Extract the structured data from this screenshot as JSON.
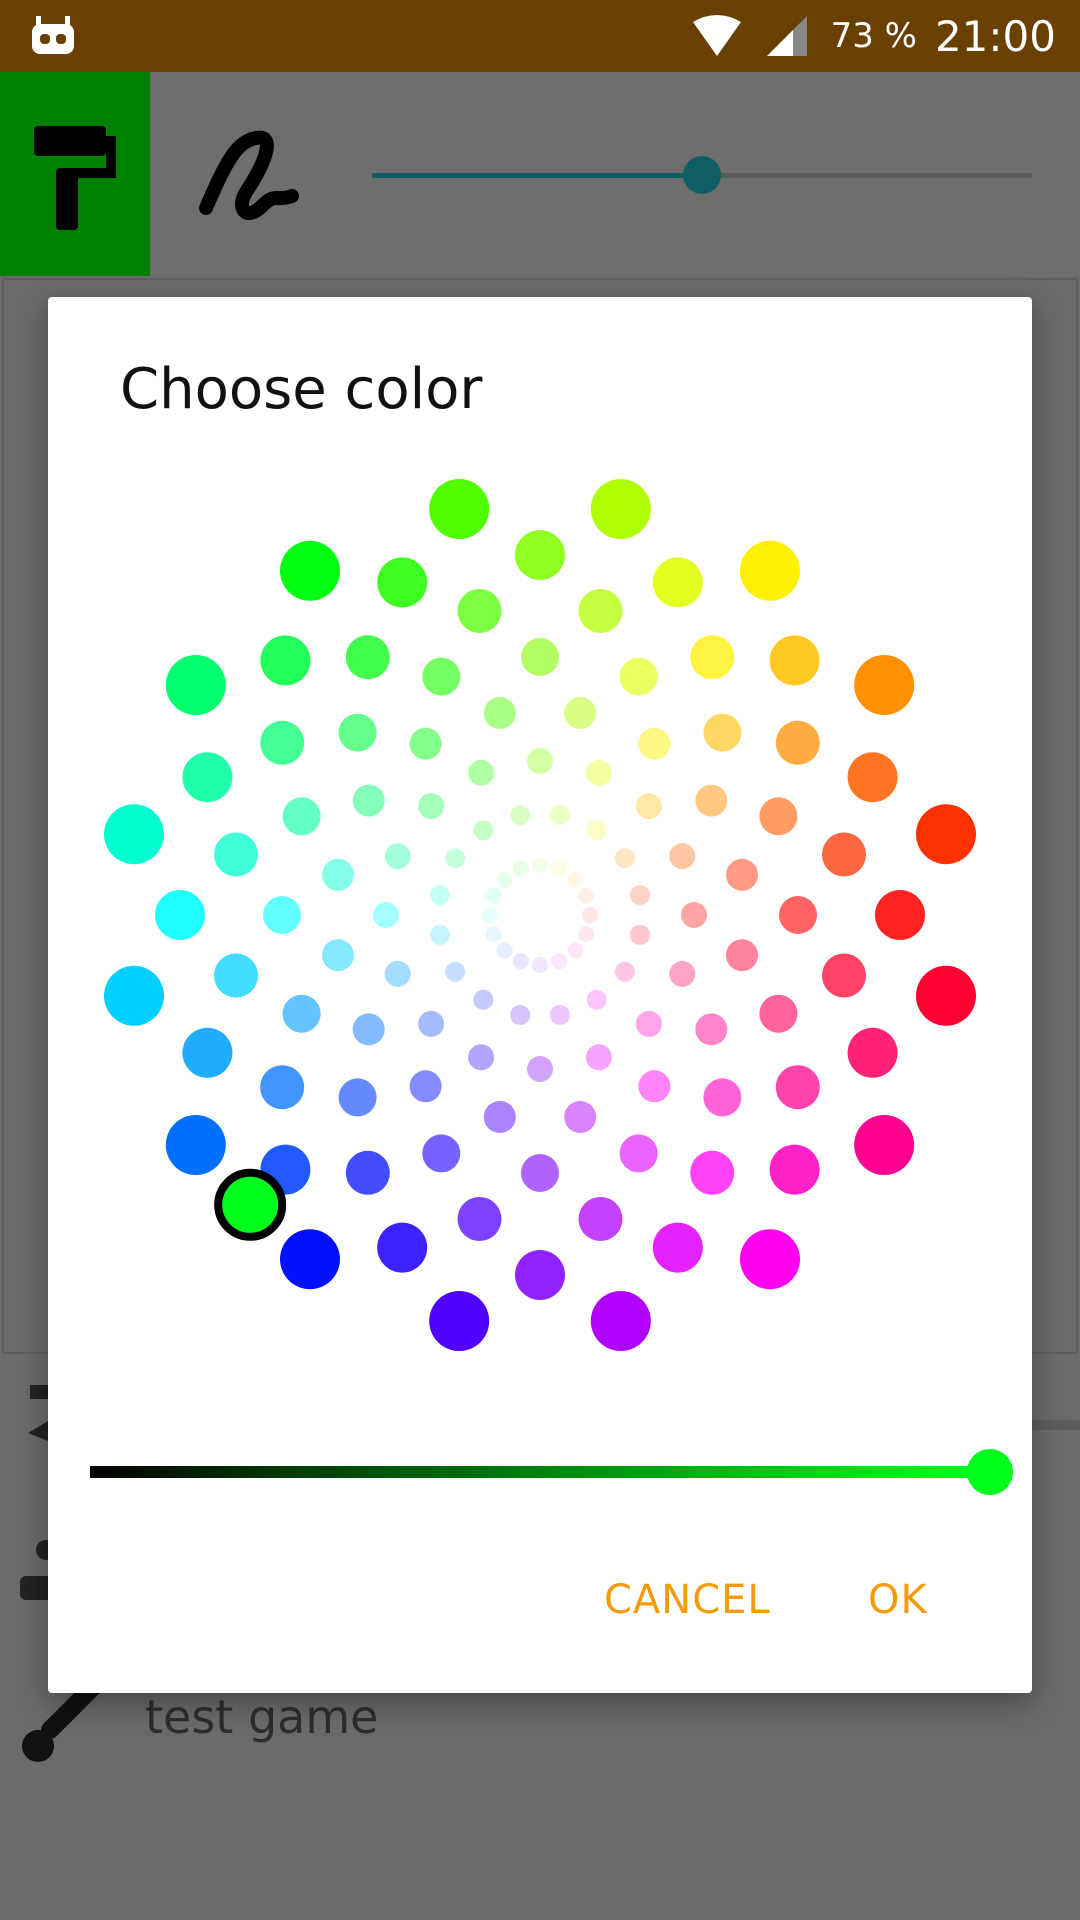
{
  "status_bar": {
    "battery": "73 %",
    "time": "21:00",
    "background": "#6a4000"
  },
  "toolbar": {
    "paint_tool_icon": "paint-roller-icon",
    "stroke_tool_icon": "squiggle-icon",
    "size_slider_value": 0.5,
    "accent": "#0e5f63",
    "active_color": "#008000"
  },
  "background": {
    "project_name": "test game"
  },
  "dialog": {
    "title": "Choose color",
    "selected_color": "#00ff1c",
    "brightness_value": 1.0,
    "cancel_label": "CANCEL",
    "ok_label": "OK",
    "button_color": "#f39b0a"
  }
}
